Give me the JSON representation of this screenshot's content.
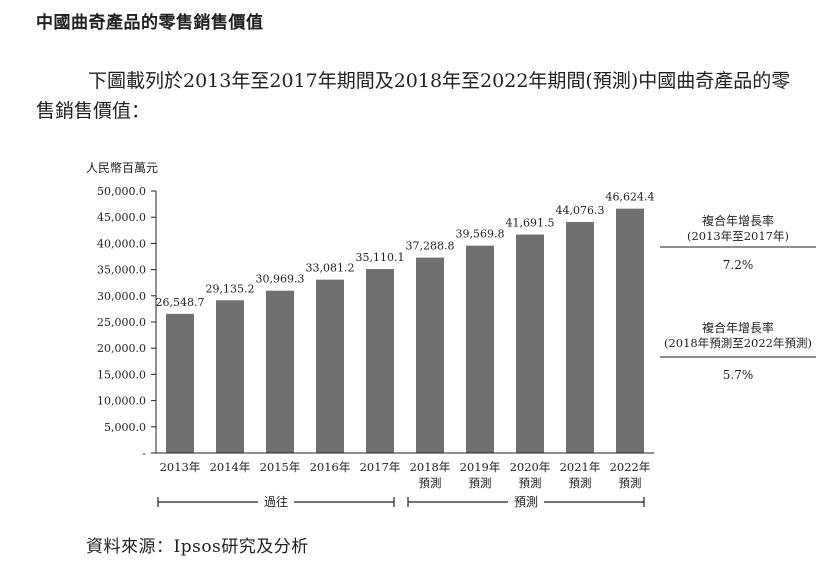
{
  "heading": "中國曲奇產品的零售銷售價值",
  "intro": "下圖載列於2013年至2017年期間及2018年至2022年期間(預測)中國曲奇產品的零售銷售價值：",
  "chart_data": {
    "type": "bar",
    "unit_label": "人民幣百萬元",
    "categories": [
      "2013年",
      "2014年",
      "2015年",
      "2016年",
      "2017年",
      "2018年",
      "2019年",
      "2020年",
      "2021年",
      "2022年"
    ],
    "category_sublabels": [
      "",
      "",
      "",
      "",
      "",
      "預測",
      "預測",
      "預測",
      "預測",
      "預測"
    ],
    "values": [
      26548.7,
      29135.2,
      30969.3,
      33081.2,
      35110.1,
      37288.8,
      39569.8,
      41691.5,
      44076.3,
      46624.4
    ],
    "value_labels": [
      "26,548.7",
      "29,135.2",
      "30,969.3",
      "33,081.2",
      "35,110.1",
      "37,288.8",
      "39,569.8",
      "41,691.5",
      "44,076.3",
      "46,624.4"
    ],
    "ylim": [
      0,
      50000
    ],
    "yticks": [
      "-",
      "5,000.0",
      "10,000.0",
      "15,000.0",
      "20,000.0",
      "25,000.0",
      "30,000.0",
      "35,000.0",
      "40,000.0",
      "45,000.0",
      "50,000.0"
    ],
    "bar_color": "#707070",
    "periods": [
      {
        "label": "過往",
        "start_index": 0,
        "end_index": 4
      },
      {
        "label": "預測",
        "start_index": 5,
        "end_index": 9
      }
    ],
    "cagr": [
      {
        "title": "複合年增長率",
        "range": "(2013年至2017年)",
        "value": "7.2%"
      },
      {
        "title": "複合年增長率",
        "range": "(2018年預測至2022年預測)",
        "value": "5.7%"
      }
    ]
  },
  "source": "資料來源：Ipsos研究及分析"
}
